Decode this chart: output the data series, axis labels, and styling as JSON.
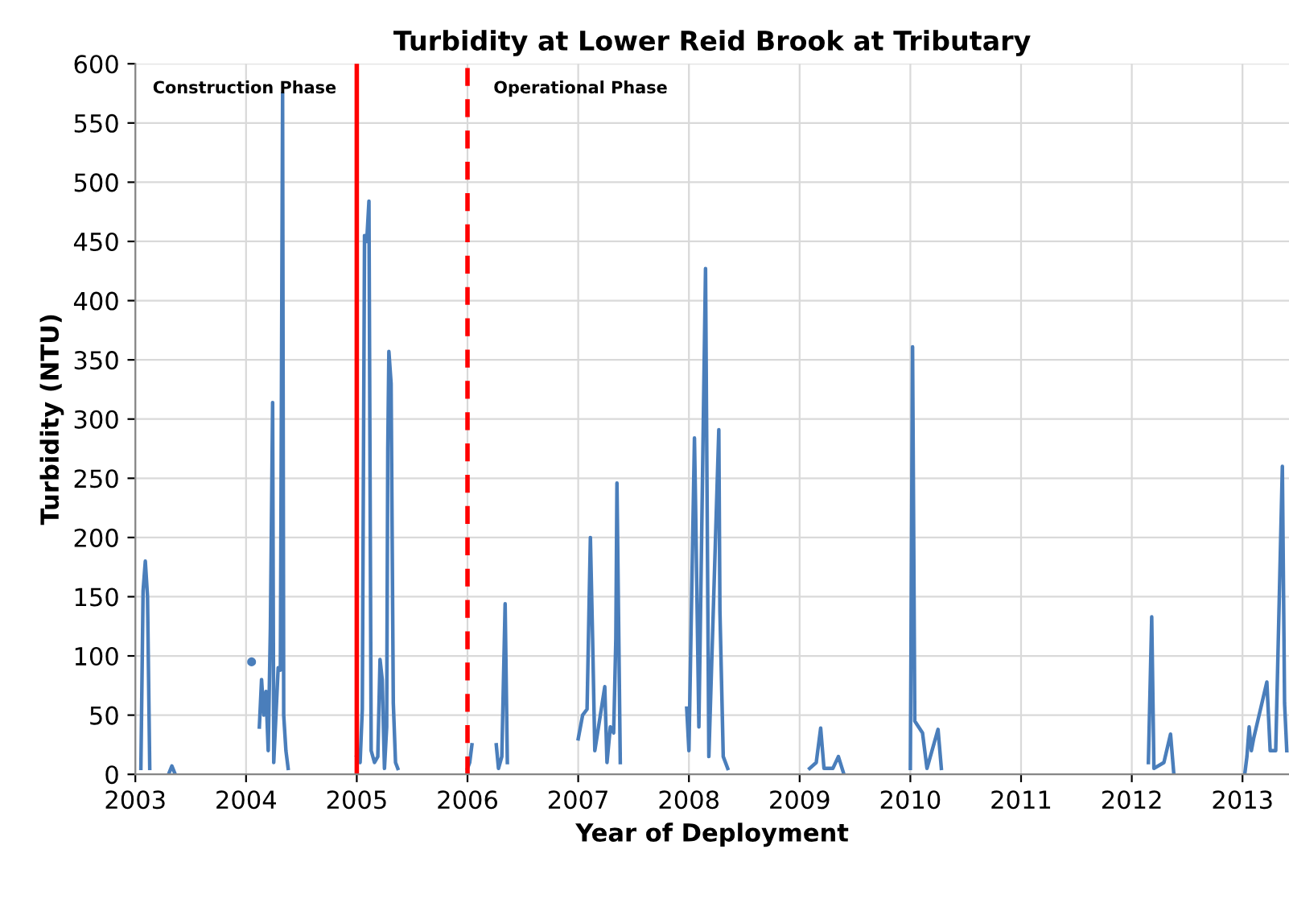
{
  "chart_data": {
    "type": "line",
    "title": "Turbidity at Lower Reid Brook at Tributary",
    "xlabel": "Year of Deployment",
    "ylabel": "Turbidity (NTU)",
    "x": [
      2003.05,
      2003.07,
      2003.09,
      2003.11,
      2003.13,
      2003.15,
      2003.3,
      2003.33,
      2003.36,
      2003.5,
      2004.12,
      2004.14,
      2004.16,
      2004.18,
      2004.2,
      2004.22,
      2004.24,
      2004.25,
      2004.27,
      2004.29,
      2004.31,
      2004.33,
      2004.34,
      2004.36,
      2004.38,
      2004.6,
      2005.0,
      2005.03,
      2005.05,
      2005.07,
      2005.09,
      2005.11,
      2005.13,
      2005.16,
      2005.19,
      2005.21,
      2005.23,
      2005.25,
      2005.27,
      2005.28,
      2005.29,
      2005.31,
      2005.33,
      2005.35,
      2005.37,
      2005.6,
      2006.0,
      2006.02,
      2006.04,
      2006.1,
      2006.26,
      2006.28,
      2006.31,
      2006.34,
      2006.36,
      2006.5,
      2007.0,
      2007.04,
      2007.08,
      2007.11,
      2007.13,
      2007.15,
      2007.24,
      2007.26,
      2007.29,
      2007.32,
      2007.34,
      2007.35,
      2007.38,
      2007.6,
      2007.98,
      2008.0,
      2008.05,
      2008.06,
      2008.09,
      2008.15,
      2008.18,
      2008.27,
      2008.28,
      2008.31,
      2008.35,
      2008.6,
      2009.09,
      2009.15,
      2009.19,
      2009.22,
      2009.3,
      2009.35,
      2009.4,
      2009.8,
      2010.0,
      2010.02,
      2010.04,
      2010.11,
      2010.15,
      2010.25,
      2010.28,
      2010.6,
      2012.15,
      2012.18,
      2012.2,
      2012.29,
      2012.35,
      2012.38,
      2012.8,
      2013.02,
      2013.04,
      2013.06,
      2013.08,
      2013.1,
      2013.22,
      2013.25,
      2013.3,
      2013.36,
      2013.38,
      2013.4
    ],
    "series": [
      {
        "color": "#4a7ebb",
        "values": [
          5,
          155,
          180,
          150,
          5,
          null,
          0,
          7,
          0,
          null,
          40,
          80,
          50,
          70,
          20,
          125,
          314,
          10,
          50,
          90,
          88,
          575,
          50,
          20,
          5,
          null,
          15,
          10,
          55,
          455,
          450,
          484,
          20,
          10,
          15,
          97,
          80,
          5,
          40,
          275,
          357,
          330,
          60,
          10,
          5,
          null,
          5,
          10,
          25,
          null,
          25,
          5,
          15,
          144,
          10,
          null,
          30,
          50,
          55,
          200,
          115,
          20,
          74,
          10,
          40,
          35,
          115,
          246,
          10,
          null,
          56,
          20,
          284,
          228,
          40,
          427,
          15,
          291,
          138,
          15,
          5,
          null,
          5,
          10,
          39,
          5,
          5,
          15,
          0,
          null,
          5,
          361,
          45,
          35,
          5,
          38,
          5,
          null,
          10,
          133,
          5,
          10,
          34,
          0,
          null,
          0,
          15,
          40,
          20,
          30,
          78,
          20,
          20,
          260,
          60,
          20
        ]
      },
      {
        "type": "scatter",
        "marker": "circle",
        "color": "#4a7ebb",
        "x": [
          2004.05
        ],
        "values": [
          95
        ]
      }
    ],
    "ref_lines": [
      {
        "axis": "x",
        "value": 2005,
        "color": "#ff0000",
        "line_style": "solid"
      },
      {
        "axis": "x",
        "value": 2006,
        "color": "#ff0000",
        "line_style": "dashed"
      }
    ],
    "annotations": [
      "Construction Phase",
      "Operational Phase"
    ],
    "xlim": [
      2003,
      2013.42
    ],
    "xticks": [
      2003,
      2004,
      2005,
      2006,
      2007,
      2008,
      2009,
      2010,
      2011,
      2012,
      2013
    ],
    "ylim": [
      0,
      600
    ],
    "yticks": [
      0,
      50,
      100,
      150,
      200,
      250,
      300,
      350,
      400,
      450,
      500,
      550,
      600
    ],
    "grid": true,
    "legend": false,
    "marker": "none",
    "line_style": "solid"
  }
}
